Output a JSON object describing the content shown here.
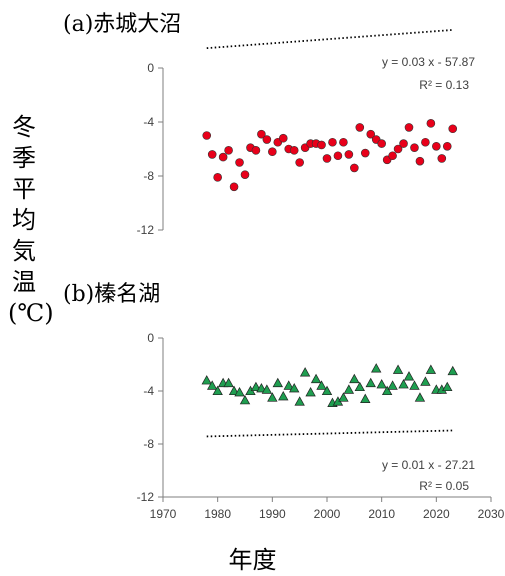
{
  "ylabel": "冬季平均気温(℃)",
  "xlabel": "年度",
  "chart_data": [
    {
      "type": "scatter",
      "title": "(a)赤城大沼",
      "marker": "circle",
      "marker_color": "#e8001a",
      "ylim": [
        -12,
        0
      ],
      "yticks": [
        0,
        -4,
        -8,
        -12
      ],
      "xlim": [
        1970,
        2030
      ],
      "equation": "y = 0.03 x - 57.87",
      "r2": "R² = 0.13",
      "trend": {
        "slope": 0.03,
        "intercept": -57.87
      },
      "x": [
        1978,
        1979,
        1980,
        1981,
        1982,
        1983,
        1984,
        1985,
        1986,
        1987,
        1988,
        1989,
        1990,
        1991,
        1992,
        1993,
        1994,
        1995,
        1996,
        1997,
        1998,
        1999,
        2000,
        2001,
        2002,
        2003,
        2004,
        2005,
        2006,
        2007,
        2008,
        2009,
        2010,
        2011,
        2012,
        2013,
        2014,
        2015,
        2016,
        2017,
        2018,
        2019,
        2020,
        2021,
        2022,
        2023
      ],
      "y": [
        -5.0,
        -6.4,
        -8.1,
        -6.6,
        -6.1,
        -8.8,
        -7.0,
        -7.9,
        -5.9,
        -6.1,
        -4.9,
        -5.3,
        -6.2,
        -5.5,
        -5.2,
        -6.0,
        -6.1,
        -7.0,
        -5.9,
        -5.6,
        -5.6,
        -5.7,
        -6.7,
        -5.5,
        -6.5,
        -5.5,
        -6.4,
        -7.4,
        -4.4,
        -6.3,
        -4.9,
        -5.3,
        -5.6,
        -6.8,
        -6.5,
        -6.0,
        -5.6,
        -4.4,
        -5.9,
        -6.9,
        -5.5,
        -4.1,
        -5.8,
        -6.7,
        -5.8,
        -4.5
      ]
    },
    {
      "type": "scatter",
      "title": "(b)榛名湖",
      "marker": "triangle",
      "marker_color": "#1f9e50",
      "ylim": [
        -12,
        0
      ],
      "yticks": [
        0,
        -4,
        -8,
        -12
      ],
      "xlim": [
        1970,
        2030
      ],
      "xticks": [
        1970,
        1980,
        1990,
        2000,
        2010,
        2020,
        2030
      ],
      "equation": "y = 0.01 x - 27.21",
      "r2": "R² = 0.05",
      "trend": {
        "slope": 0.01,
        "intercept": -27.21
      },
      "x": [
        1978,
        1979,
        1980,
        1981,
        1982,
        1983,
        1984,
        1985,
        1986,
        1987,
        1988,
        1989,
        1990,
        1991,
        1992,
        1993,
        1994,
        1995,
        1996,
        1997,
        1998,
        1999,
        2000,
        2001,
        2002,
        2003,
        2004,
        2005,
        2006,
        2007,
        2008,
        2009,
        2010,
        2011,
        2012,
        2013,
        2014,
        2015,
        2016,
        2017,
        2018,
        2019,
        2020,
        2021,
        2022,
        2023
      ],
      "y": [
        -3.2,
        -3.6,
        -4.0,
        -3.4,
        -3.4,
        -4.0,
        -4.1,
        -4.7,
        -4.0,
        -3.7,
        -3.8,
        -3.9,
        -4.5,
        -3.4,
        -4.4,
        -3.6,
        -3.8,
        -4.8,
        -2.6,
        -4.1,
        -3.1,
        -3.6,
        -4.0,
        -4.9,
        -4.8,
        -4.5,
        -3.9,
        -3.1,
        -3.7,
        -4.6,
        -3.4,
        -2.3,
        -3.5,
        -4.0,
        -3.6,
        -2.4,
        -3.5,
        -2.9,
        -3.6,
        -4.5,
        -3.3,
        -2.4,
        -3.9,
        -3.9,
        -3.7,
        -2.5
      ]
    }
  ]
}
